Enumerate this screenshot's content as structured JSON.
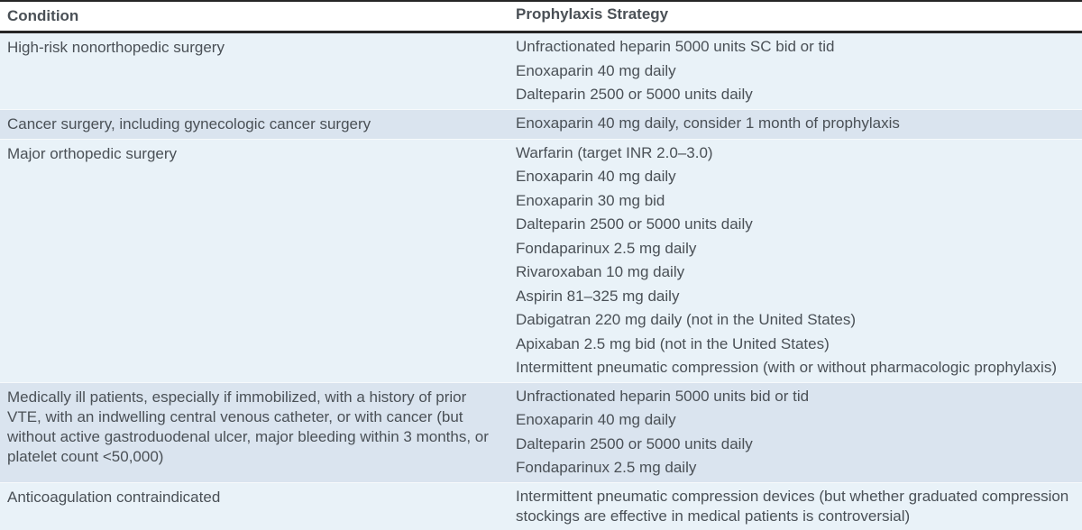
{
  "table": {
    "columns": [
      "Condition",
      "Prophylaxis Strategy"
    ],
    "rows": [
      {
        "shade": "light",
        "condition": "High-risk nonorthopedic surgery",
        "strategies": [
          "Unfractionated heparin 5000 units SC bid or tid",
          "Enoxaparin 40 mg daily",
          "Dalteparin 2500 or 5000 units daily"
        ]
      },
      {
        "shade": "dark",
        "condition": "Cancer surgery, including gynecologic cancer surgery",
        "strategies": [
          "Enoxaparin 40 mg daily, consider 1 month of prophylaxis"
        ]
      },
      {
        "shade": "light",
        "condition": "Major orthopedic surgery",
        "strategies": [
          "Warfarin (target INR 2.0–3.0)",
          "Enoxaparin 40 mg daily",
          "Enoxaparin 30 mg bid",
          "Dalteparin 2500 or 5000 units daily",
          "Fondaparinux 2.5 mg daily",
          "Rivaroxaban 10 mg daily",
          "Aspirin 81–325 mg daily",
          "Dabigatran 220 mg daily (not in the United States)",
          "Apixaban 2.5 mg bid (not in the United States)",
          "Intermittent pneumatic compression (with or without pharmacologic prophylaxis)"
        ]
      },
      {
        "shade": "dark",
        "condition": "Medically ill patients, especially if immobilized, with a history of prior VTE, with an indwelling central venous catheter, or with cancer (but without active gastroduodenal ulcer, major bleeding within 3 months, or platelet count <50,000)",
        "strategies": [
          "Unfractionated heparin 5000 units bid or tid",
          "Enoxaparin 40 mg daily",
          "Dalteparin 2500 or 5000 units daily",
          "Fondaparinux 2.5 mg daily"
        ]
      },
      {
        "shade": "light",
        "condition": "Anticoagulation contraindicated",
        "strategies": [
          "Intermittent pneumatic compression devices (but whether graduated compression stockings are effective in medical patients is controversial)"
        ]
      }
    ]
  },
  "colors": {
    "row_light": "#e9f2f8",
    "row_dark": "#dae4ef",
    "row_separator": "#f7fafc",
    "rule": "#262626",
    "header_text": "#1b1b1b",
    "body_text": "#4a5056"
  }
}
